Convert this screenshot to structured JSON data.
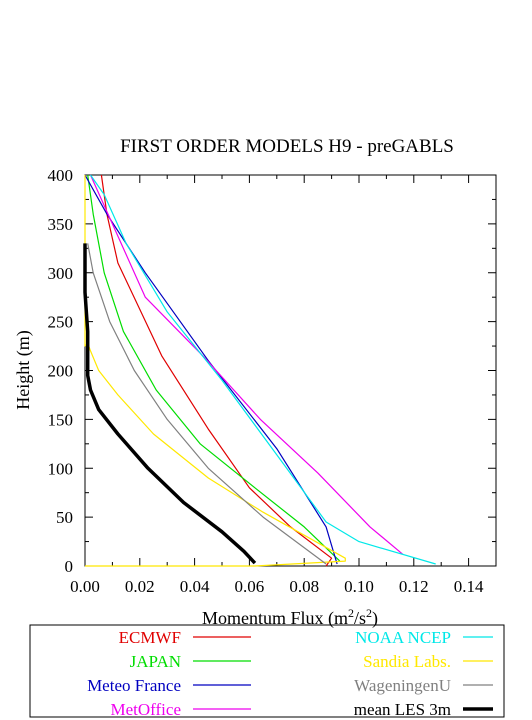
{
  "chart_data": {
    "type": "line",
    "title": "FIRST ORDER MODELS H9  - preGABLS",
    "xlabel": "Momentum Flux (m²/s²)",
    "xlabel_parts": {
      "main": "Momentum Flux (m",
      "sup1": "2",
      "mid": "/s",
      "sup2": "2",
      "end": ")"
    },
    "ylabel": "Height (m)",
    "xlim": [
      0,
      0.15
    ],
    "ylim": [
      0,
      400
    ],
    "xticks": [
      0,
      0.02,
      0.04,
      0.06,
      0.08,
      0.1,
      0.12,
      0.14
    ],
    "xtick_labels": [
      "0.00",
      "0.02",
      "0.04",
      "0.06",
      "0.08",
      "0.10",
      "0.12",
      "0.14"
    ],
    "yticks": [
      0,
      50,
      100,
      150,
      200,
      250,
      300,
      350,
      400
    ],
    "ytick_labels": [
      "0",
      "50",
      "100",
      "150",
      "200",
      "250",
      "300",
      "350",
      "400"
    ],
    "grid": false,
    "legend_position": "bottom",
    "series": [
      {
        "name": "ECMWF",
        "color": "#e00000",
        "width": 1.2,
        "points": [
          [
            0.088,
            0
          ],
          [
            0.09,
            8
          ],
          [
            0.075,
            40
          ],
          [
            0.06,
            80
          ],
          [
            0.045,
            140
          ],
          [
            0.028,
            215
          ],
          [
            0.012,
            310
          ],
          [
            0.008,
            360
          ],
          [
            0.006,
            400
          ]
        ]
      },
      {
        "name": "JAPAN",
        "color": "#00dd00",
        "width": 1.2,
        "points": [
          [
            0.093,
            5
          ],
          [
            0.08,
            40
          ],
          [
            0.062,
            80
          ],
          [
            0.042,
            125
          ],
          [
            0.026,
            180
          ],
          [
            0.014,
            240
          ],
          [
            0.007,
            300
          ],
          [
            0.003,
            360
          ],
          [
            0.001,
            400
          ]
        ]
      },
      {
        "name": "Meteo France",
        "color": "#0000c0",
        "width": 1.2,
        "points": [
          [
            0.092,
            2
          ],
          [
            0.088,
            40
          ],
          [
            0.07,
            120
          ],
          [
            0.045,
            210
          ],
          [
            0.022,
            300
          ],
          [
            0.008,
            360
          ],
          [
            0.0,
            400
          ]
        ]
      },
      {
        "name": "MetOffice",
        "color": "#ee00ee",
        "width": 1.2,
        "points": [
          [
            0.116,
            12
          ],
          [
            0.104,
            40
          ],
          [
            0.085,
            95
          ],
          [
            0.064,
            150
          ],
          [
            0.043,
            215
          ],
          [
            0.022,
            275
          ],
          [
            0.01,
            350
          ],
          [
            0.002,
            400
          ]
        ]
      },
      {
        "name": "NOAA NCEP",
        "color": "#00e8e8",
        "width": 1.2,
        "points": [
          [
            0.128,
            2
          ],
          [
            0.1,
            25
          ],
          [
            0.088,
            45
          ],
          [
            0.071,
            110
          ],
          [
            0.05,
            190
          ],
          [
            0.03,
            260
          ],
          [
            0.015,
            330
          ],
          [
            0.007,
            380
          ],
          [
            0.002,
            400
          ]
        ]
      },
      {
        "name": "Sandia Labs.",
        "color": "#ffe800",
        "width": 1.2,
        "points": [
          [
            0.0,
            0
          ],
          [
            0.062,
            0
          ],
          [
            0.095,
            5
          ],
          [
            0.095,
            8
          ],
          [
            0.065,
            55
          ],
          [
            0.045,
            90
          ],
          [
            0.025,
            135
          ],
          [
            0.012,
            175
          ],
          [
            0.005,
            200
          ],
          [
            0.002,
            220
          ],
          [
            0.001,
            228
          ],
          [
            0.0,
            225
          ],
          [
            0.0,
            400
          ]
        ]
      },
      {
        "name": "WageningenU",
        "color": "#808080",
        "width": 1.2,
        "points": [
          [
            0.088,
            2
          ],
          [
            0.065,
            50
          ],
          [
            0.045,
            100
          ],
          [
            0.03,
            150
          ],
          [
            0.018,
            200
          ],
          [
            0.009,
            250
          ],
          [
            0.003,
            300
          ],
          [
            0.001,
            330
          ]
        ]
      },
      {
        "name": "mean LES 3m",
        "color": "#000000",
        "width": 3.5,
        "points": [
          [
            0.062,
            3
          ],
          [
            0.058,
            15
          ],
          [
            0.05,
            35
          ],
          [
            0.036,
            65
          ],
          [
            0.023,
            100
          ],
          [
            0.012,
            135
          ],
          [
            0.005,
            160
          ],
          [
            0.002,
            180
          ],
          [
            0.001,
            195
          ],
          [
            0.001,
            240
          ],
          [
            0.0,
            280
          ],
          [
            0.0,
            330
          ]
        ]
      }
    ]
  }
}
